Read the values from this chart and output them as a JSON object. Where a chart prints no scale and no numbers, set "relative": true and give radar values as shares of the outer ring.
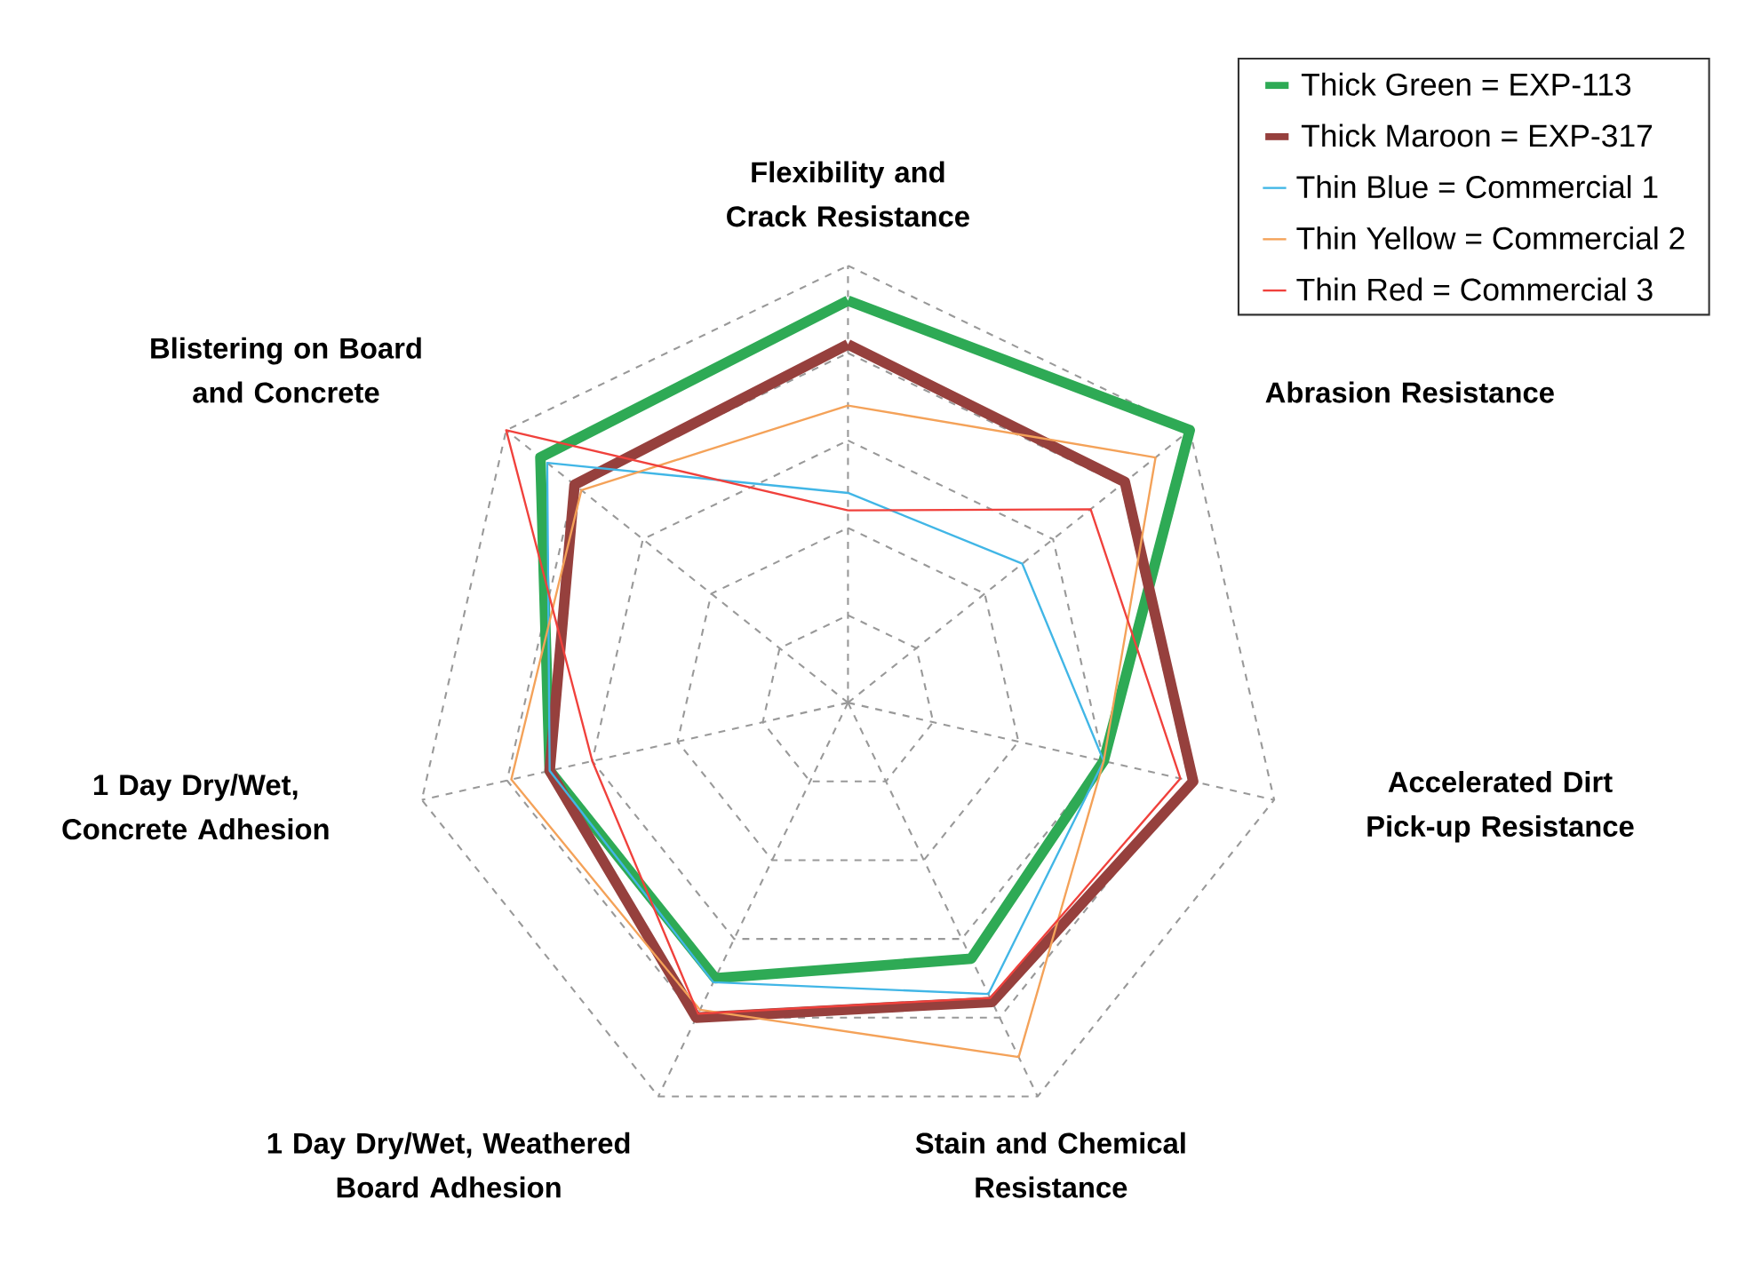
{
  "chart_data": {
    "type": "radar",
    "relative": true,
    "grid": true,
    "legend": "top right",
    "categories": [
      "Flexibility and Crack Resistance",
      "Abrasion Resistance",
      "Accelerated Dirt Pick-up Resistance",
      "Stain and Chemical Resistance",
      "1 Day Dry/Wet, Weathered Board Adhesion",
      "1 Day Dry/Wet, Concrete Adhesion",
      "Blistering on Board and Concrete"
    ],
    "series": [
      {
        "name": "Thick Green = EXP-113",
        "color": "#2eaa55",
        "values": [
          0.92,
          1.0,
          0.6,
          0.65,
          0.7,
          0.7,
          0.9
        ]
      },
      {
        "name": "Thick Maroon = EXP-317",
        "color": "#96403d",
        "values": [
          0.82,
          0.81,
          0.81,
          0.76,
          0.8,
          0.7,
          0.8
        ]
      },
      {
        "name": "Thin Blue = Commercial 1",
        "color": "#41b6e6",
        "values": [
          0.48,
          0.51,
          0.6,
          0.74,
          0.71,
          0.7,
          0.88
        ]
      },
      {
        "name": "Thin Yellow = Commercial 2",
        "color": "#f4a259",
        "values": [
          0.68,
          0.9,
          0.6,
          0.9,
          0.78,
          0.79,
          0.78
        ]
      },
      {
        "name": "Thin Red = Commercial 3",
        "color": "#f0413c",
        "values": [
          0.44,
          0.71,
          0.78,
          0.75,
          0.79,
          0.6,
          1.0
        ]
      }
    ]
  }
}
